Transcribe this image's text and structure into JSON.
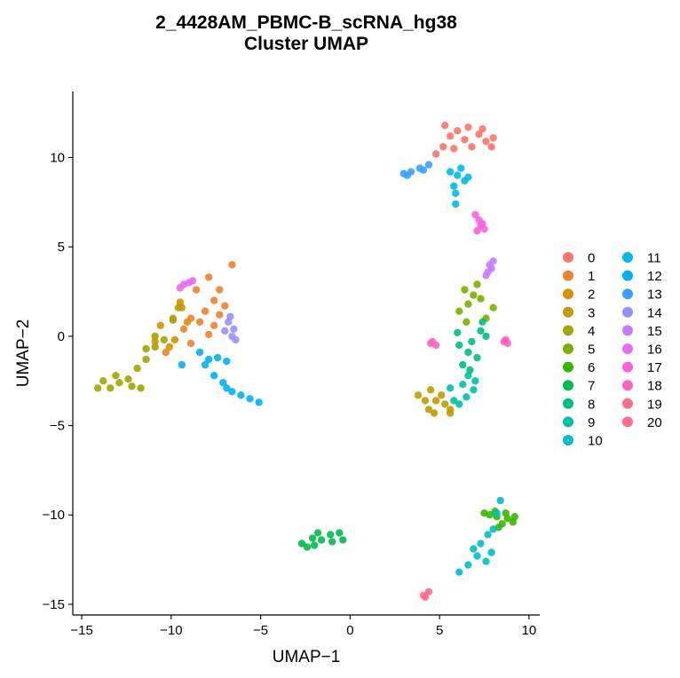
{
  "chart_data": {
    "type": "scatter",
    "title": "2_4428AM_PBMC-B_scRNA_hg38",
    "subtitle": "Cluster UMAP",
    "xlabel": "UMAP−1",
    "ylabel": "UMAP−2",
    "xlim": [
      -15.5,
      10.6
    ],
    "ylim": [
      -15.6,
      13.7
    ],
    "xticks": [
      -15,
      -10,
      -5,
      0,
      5,
      10
    ],
    "xtick_labels": [
      "−15",
      "−10",
      "−5",
      "0",
      "5",
      "10"
    ],
    "yticks": [
      -15,
      -10,
      -5,
      0,
      5,
      10
    ],
    "ytick_labels": [
      "−15",
      "−10",
      "−5",
      "0",
      "5",
      "10"
    ],
    "grid": false,
    "legend_position": "right",
    "series": [
      {
        "name": "0",
        "color": "#F8766D",
        "points": [
          [
            5.3,
            11.8
          ],
          [
            5.6,
            11.2
          ],
          [
            6.0,
            11.5
          ],
          [
            6.4,
            11.0
          ],
          [
            6.8,
            10.6
          ],
          [
            7.2,
            11.3
          ],
          [
            7.6,
            10.9
          ],
          [
            8.0,
            11.1
          ],
          [
            5.8,
            10.5
          ],
          [
            6.6,
            11.7
          ],
          [
            7.9,
            10.6
          ],
          [
            4.8,
            10.2
          ],
          [
            5.2,
            10.6
          ],
          [
            7.4,
            11.6
          ]
        ]
      },
      {
        "name": "1",
        "color": "#EA8331",
        "points": [
          [
            -7.9,
            3.3
          ],
          [
            -7.3,
            2.6
          ],
          [
            -7.6,
            2.0
          ],
          [
            -8.1,
            1.4
          ],
          [
            -8.4,
            0.8
          ],
          [
            -7.6,
            0.6
          ],
          [
            -8.9,
            1.0
          ],
          [
            -9.3,
            0.4
          ],
          [
            -7.3,
            1.2
          ],
          [
            -8.6,
            2.6
          ],
          [
            -6.6,
            4.0
          ],
          [
            -7.0,
            1.7
          ],
          [
            -7.9,
            0.1
          ],
          [
            -10.3,
            -0.9
          ],
          [
            -8.9,
            -0.4
          ]
        ]
      },
      {
        "name": "2",
        "color": "#D89000",
        "points": [
          [
            -10.6,
            0.6
          ],
          [
            -9.9,
            1.0
          ],
          [
            -9.4,
            1.6
          ],
          [
            -9.8,
            -0.2
          ],
          [
            -10.1,
            -0.6
          ],
          [
            -9.1,
            0.8
          ],
          [
            -10.9,
            -0.3
          ],
          [
            -9.5,
            1.9
          ]
        ]
      },
      {
        "name": "3",
        "color": "#C09B00",
        "points": [
          [
            4.8,
            -3.6
          ],
          [
            5.3,
            -3.8
          ],
          [
            4.4,
            -4.1
          ],
          [
            5.6,
            -4.1
          ],
          [
            4.7,
            -4.3
          ],
          [
            3.8,
            -3.3
          ],
          [
            5.1,
            -3.3
          ],
          [
            4.2,
            -3.6
          ],
          [
            5.6,
            -4.3
          ],
          [
            4.5,
            -3.0
          ]
        ]
      },
      {
        "name": "4",
        "color": "#A3A500",
        "points": [
          [
            -13.8,
            -2.5
          ],
          [
            -13.4,
            -2.9
          ],
          [
            -12.9,
            -2.6
          ],
          [
            -14.1,
            -2.9
          ],
          [
            -13.1,
            -2.2
          ],
          [
            -12.4,
            -2.4
          ],
          [
            -11.9,
            -1.8
          ],
          [
            -11.4,
            -1.3
          ],
          [
            -10.9,
            -0.6
          ],
          [
            -10.4,
            -0.2
          ],
          [
            -12.2,
            -2.8
          ],
          [
            -11.7,
            -2.9
          ],
          [
            -11.4,
            -0.7
          ],
          [
            -10.9,
            0.0
          ],
          [
            -9.9,
            0.9
          ],
          [
            -9.6,
            1.6
          ]
        ]
      },
      {
        "name": "5",
        "color": "#7CAE00",
        "points": [
          [
            6.4,
            2.6
          ],
          [
            6.9,
            2.3
          ],
          [
            6.6,
            1.8
          ],
          [
            7.1,
            2.9
          ],
          [
            7.3,
            2.1
          ],
          [
            6.1,
            1.4
          ],
          [
            8.0,
            1.6
          ],
          [
            7.6,
            1.0
          ],
          [
            6.5,
            0.8
          ]
        ]
      },
      {
        "name": "6",
        "color": "#39B600",
        "points": [
          [
            7.8,
            -10.0
          ],
          [
            8.2,
            -10.1
          ],
          [
            8.8,
            -10.2
          ],
          [
            9.1,
            -10.4
          ],
          [
            8.5,
            -10.5
          ],
          [
            8.1,
            -9.8
          ],
          [
            7.5,
            -9.9
          ],
          [
            8.7,
            -9.9
          ],
          [
            9.2,
            -10.1
          ],
          [
            8.3,
            -10.7
          ]
        ]
      },
      {
        "name": "7",
        "color": "#00BB4E",
        "points": [
          [
            -2.7,
            -11.6
          ],
          [
            -2.1,
            -11.3
          ],
          [
            -1.6,
            -11.4
          ],
          [
            -1.1,
            -11.1
          ],
          [
            -0.6,
            -11.0
          ],
          [
            -1.0,
            -11.5
          ],
          [
            -2.4,
            -11.8
          ],
          [
            -1.8,
            -11.0
          ],
          [
            -0.4,
            -11.4
          ],
          [
            -2.0,
            -11.7
          ]
        ]
      },
      {
        "name": "8",
        "color": "#00BF7D",
        "points": [
          [
            6.1,
            -0.5
          ],
          [
            6.6,
            -0.9
          ],
          [
            7.3,
            0.3
          ],
          [
            6.8,
            -0.3
          ],
          [
            6.3,
            -1.6
          ],
          [
            6.7,
            -1.9
          ],
          [
            7.1,
            -1.2
          ],
          [
            7.6,
            0.0
          ],
          [
            6.0,
            0.2
          ],
          [
            7.4,
            0.8
          ]
        ]
      },
      {
        "name": "9",
        "color": "#00C1A7",
        "points": [
          [
            6.3,
            -2.7
          ],
          [
            6.9,
            -3.0
          ],
          [
            6.5,
            -3.4
          ],
          [
            5.8,
            -3.6
          ],
          [
            7.0,
            -2.5
          ],
          [
            6.6,
            -2.2
          ],
          [
            5.6,
            -2.9
          ],
          [
            6.1,
            -3.8
          ]
        ]
      },
      {
        "name": "10",
        "color": "#00BFC4",
        "points": [
          [
            7.1,
            -12.3
          ],
          [
            7.6,
            -12.6
          ],
          [
            7.9,
            -12.1
          ],
          [
            6.6,
            -12.8
          ],
          [
            6.1,
            -13.2
          ],
          [
            7.3,
            -11.6
          ],
          [
            7.7,
            -11.1
          ],
          [
            8.0,
            -10.8
          ],
          [
            8.2,
            -9.9
          ],
          [
            8.4,
            -9.2
          ],
          [
            6.9,
            -11.9
          ]
        ]
      },
      {
        "name": "11",
        "color": "#00BAE0",
        "points": [
          [
            5.6,
            9.2
          ],
          [
            6.0,
            9.0
          ],
          [
            6.4,
            8.7
          ],
          [
            5.8,
            8.4
          ],
          [
            6.2,
            9.4
          ],
          [
            5.9,
            8.0
          ],
          [
            5.9,
            7.4
          ],
          [
            6.6,
            8.9
          ]
        ]
      },
      {
        "name": "12",
        "color": "#00B0F6",
        "points": [
          [
            -6.9,
            -1.4
          ],
          [
            -7.4,
            -1.2
          ],
          [
            -8.4,
            -0.9
          ],
          [
            -7.9,
            -1.3
          ],
          [
            -7.6,
            -2.2
          ],
          [
            -7.1,
            -2.6
          ],
          [
            -6.9,
            -2.9
          ],
          [
            -6.6,
            -3.1
          ],
          [
            -6.1,
            -3.3
          ],
          [
            -5.6,
            -3.5
          ],
          [
            -5.1,
            -3.7
          ],
          [
            -8.1,
            -1.6
          ],
          [
            -9.4,
            -1.6
          ]
        ]
      },
      {
        "name": "13",
        "color": "#35A2FF",
        "points": [
          [
            3.0,
            9.1
          ],
          [
            3.4,
            9.2
          ],
          [
            3.9,
            9.4
          ],
          [
            4.4,
            9.6
          ],
          [
            3.2,
            9.0
          ],
          [
            4.1,
            9.3
          ]
        ]
      },
      {
        "name": "14",
        "color": "#9590FF",
        "points": [
          [
            -6.5,
            0.4
          ],
          [
            -6.6,
            0.0
          ],
          [
            -6.8,
            0.8
          ],
          [
            -7.0,
            0.3
          ],
          [
            -6.4,
            -0.2
          ],
          [
            -6.7,
            1.1
          ]
        ]
      },
      {
        "name": "15",
        "color": "#C77CFF",
        "points": [
          [
            7.7,
            3.6
          ],
          [
            7.8,
            4.0
          ],
          [
            7.9,
            3.8
          ],
          [
            7.6,
            3.4
          ],
          [
            8.0,
            4.2
          ]
        ]
      },
      {
        "name": "16",
        "color": "#E76BF3",
        "points": [
          [
            -9.3,
            2.9
          ],
          [
            -9.0,
            3.0
          ],
          [
            -9.5,
            2.7
          ],
          [
            -8.8,
            3.1
          ]
        ]
      },
      {
        "name": "17",
        "color": "#FA62DB",
        "points": [
          [
            7.2,
            6.5
          ],
          [
            7.3,
            6.2
          ],
          [
            7.5,
            6.0
          ],
          [
            7.0,
            6.8
          ],
          [
            7.4,
            6.3
          ],
          [
            7.1,
            5.9
          ]
        ]
      },
      {
        "name": "18",
        "color": "#FF62BC",
        "points": [
          [
            4.5,
            -0.4
          ],
          [
            4.8,
            -0.5
          ],
          [
            8.6,
            -0.3
          ],
          [
            8.8,
            -0.4
          ],
          [
            4.6,
            -0.3
          ],
          [
            8.7,
            -0.2
          ]
        ]
      },
      {
        "name": "19",
        "color": "#FF6C91",
        "points": [
          [
            4.1,
            -14.5
          ],
          [
            4.2,
            -14.6
          ],
          [
            4.4,
            -14.3
          ]
        ]
      },
      {
        "name": "20",
        "color": "#FF6C91",
        "points": []
      }
    ]
  }
}
